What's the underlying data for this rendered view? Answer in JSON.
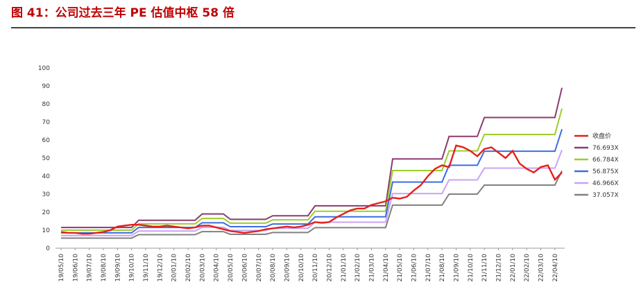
{
  "chart_data": {
    "type": "line",
    "title": "图 41：公司过去三年 PE 估值中枢 58 倍",
    "categories": [
      "19/05/10",
      null,
      "19/06/10",
      null,
      "19/07/10",
      null,
      "19/08/10",
      null,
      "19/09/10",
      null,
      "19/10/10",
      null,
      "19/11/10",
      null,
      "19/12/10",
      null,
      "20/01/10",
      null,
      "20/02/10",
      null,
      "20/03/10",
      null,
      "20/04/10",
      null,
      "20/05/10",
      null,
      "20/06/10",
      null,
      "20/07/10",
      null,
      "20/08/10",
      null,
      "20/09/10",
      null,
      "20/10/10",
      null,
      "20/11/10",
      null,
      "20/12/10",
      null,
      "21/01/10",
      null,
      "21/02/10",
      null,
      "21/03/10",
      null,
      "21/04/10",
      null,
      "21/05/10",
      null,
      "21/06/10",
      null,
      "21/07/10",
      null,
      "21/08/10",
      null,
      "21/09/10",
      null,
      "21/10/10",
      null,
      "21/11/10",
      null,
      "21/12/10",
      null,
      "22/01/10",
      null,
      "22/02/10",
      null,
      "22/03/10",
      null,
      "22/04/10",
      null
    ],
    "series": [
      {
        "name": "收盘价",
        "color": "#e4201c",
        "values": [
          9,
          8.5,
          8.5,
          8,
          8,
          8.5,
          9,
          10,
          12,
          12.5,
          13,
          13,
          12.5,
          12,
          12,
          12.5,
          12,
          11.5,
          11,
          11.5,
          12.5,
          12.5,
          11.5,
          10.5,
          9.5,
          9,
          8.5,
          9,
          9.5,
          10.5,
          11,
          11.5,
          12,
          11.5,
          12,
          13,
          14.5,
          14,
          14.5,
          17,
          19,
          21,
          22,
          22,
          24,
          25,
          26,
          28,
          27.5,
          28.5,
          32,
          35,
          40,
          44,
          46,
          45,
          57,
          56,
          54,
          51,
          55,
          56,
          53,
          50,
          54,
          47,
          44,
          42,
          45,
          46,
          38,
          42
        ]
      },
      {
        "name": "76.693X",
        "color": "#8b3a6e",
        "values": [
          11.5,
          11.5,
          11.5,
          11.5,
          11.5,
          11.5,
          11.5,
          11.5,
          11.5,
          11.5,
          11.5,
          15.5,
          15.5,
          15.5,
          15.5,
          15.5,
          15.5,
          15.5,
          15.5,
          15.5,
          19,
          19,
          19,
          19,
          16,
          16,
          16,
          16,
          16,
          16,
          18,
          18,
          18,
          18,
          18,
          18,
          23.5,
          23.5,
          23.5,
          23.5,
          23.5,
          23.5,
          23.5,
          23.5,
          23.5,
          23.5,
          23.5,
          49.5,
          49.5,
          49.5,
          49.5,
          49.5,
          49.5,
          49.5,
          49.5,
          62,
          62,
          62,
          62,
          62,
          72.5,
          72.5,
          72.5,
          72.5,
          72.5,
          72.5,
          72.5,
          72.5,
          72.5,
          72.5,
          72.5,
          89
        ]
      },
      {
        "name": "66.784X",
        "color": "#9dcd2b",
        "values": [
          10,
          10,
          10,
          10,
          10,
          10,
          10,
          10,
          10,
          10,
          10,
          13.5,
          13.5,
          13.5,
          13.5,
          13.5,
          13.5,
          13.5,
          13.5,
          13.5,
          16.5,
          16.5,
          16.5,
          16.5,
          13.9,
          13.9,
          13.9,
          13.9,
          13.9,
          13.9,
          15.7,
          15.7,
          15.7,
          15.7,
          15.7,
          15.7,
          20.5,
          20.5,
          20.5,
          20.5,
          20.5,
          20.5,
          20.5,
          20.5,
          20.5,
          20.5,
          20.5,
          43.1,
          43.1,
          43.1,
          43.1,
          43.1,
          43.1,
          43.1,
          43.1,
          54,
          54,
          54,
          54,
          54,
          63.1,
          63.1,
          63.1,
          63.1,
          63.1,
          63.1,
          63.1,
          63.1,
          63.1,
          63.1,
          63.1,
          77.5
        ]
      },
      {
        "name": "56.875X",
        "color": "#3a6de0",
        "values": [
          8.5,
          8.5,
          8.5,
          8.5,
          8.5,
          8.5,
          8.5,
          8.5,
          8.5,
          8.5,
          8.5,
          11.5,
          11.5,
          11.5,
          11.5,
          11.5,
          11.5,
          11.5,
          11.5,
          11.5,
          14.1,
          14.1,
          14.1,
          14.1,
          11.9,
          11.9,
          11.9,
          11.9,
          11.9,
          11.9,
          13.4,
          13.4,
          13.4,
          13.4,
          13.4,
          13.4,
          17.4,
          17.4,
          17.4,
          17.4,
          17.4,
          17.4,
          17.4,
          17.4,
          17.4,
          17.4,
          17.4,
          36.7,
          36.7,
          36.7,
          36.7,
          36.7,
          36.7,
          36.7,
          36.7,
          46,
          46,
          46,
          46,
          46,
          53.8,
          53.8,
          53.8,
          53.8,
          53.8,
          53.8,
          53.8,
          53.8,
          53.8,
          53.8,
          53.8,
          66
        ]
      },
      {
        "name": "46.966X",
        "color": "#c9a2f2",
        "values": [
          7,
          7,
          7,
          7,
          7,
          7,
          7,
          7,
          7,
          7,
          7,
          9.5,
          9.5,
          9.5,
          9.5,
          9.5,
          9.5,
          9.5,
          9.5,
          9.5,
          11.6,
          11.6,
          11.6,
          11.6,
          9.8,
          9.8,
          9.8,
          9.8,
          9.8,
          9.8,
          11,
          11,
          11,
          11,
          11,
          11,
          14.4,
          14.4,
          14.4,
          14.4,
          14.4,
          14.4,
          14.4,
          14.4,
          14.4,
          14.4,
          14.4,
          30.3,
          30.3,
          30.3,
          30.3,
          30.3,
          30.3,
          30.3,
          30.3,
          37.9,
          37.9,
          37.9,
          37.9,
          37.9,
          44.4,
          44.4,
          44.4,
          44.4,
          44.4,
          44.4,
          44.4,
          44.4,
          44.4,
          44.4,
          44.4,
          54.5
        ]
      },
      {
        "name": "37.057X",
        "color": "#808080",
        "values": [
          5.6,
          5.6,
          5.6,
          5.6,
          5.6,
          5.6,
          5.6,
          5.6,
          5.6,
          5.6,
          5.6,
          7.5,
          7.5,
          7.5,
          7.5,
          7.5,
          7.5,
          7.5,
          7.5,
          7.5,
          9.2,
          9.2,
          9.2,
          9.2,
          7.7,
          7.7,
          7.7,
          7.7,
          7.7,
          7.7,
          8.7,
          8.7,
          8.7,
          8.7,
          8.7,
          8.7,
          11.4,
          11.4,
          11.4,
          11.4,
          11.4,
          11.4,
          11.4,
          11.4,
          11.4,
          11.4,
          11.4,
          23.9,
          23.9,
          23.9,
          23.9,
          23.9,
          23.9,
          23.9,
          23.9,
          30,
          30,
          30,
          30,
          30,
          35,
          35,
          35,
          35,
          35,
          35,
          35,
          35,
          35,
          35,
          35,
          43
        ]
      }
    ],
    "ylim": [
      0,
      100
    ],
    "yticks": [
      0,
      10,
      20,
      30,
      40,
      50,
      60,
      70,
      80,
      90,
      100
    ],
    "grid": false,
    "legend": "right"
  }
}
